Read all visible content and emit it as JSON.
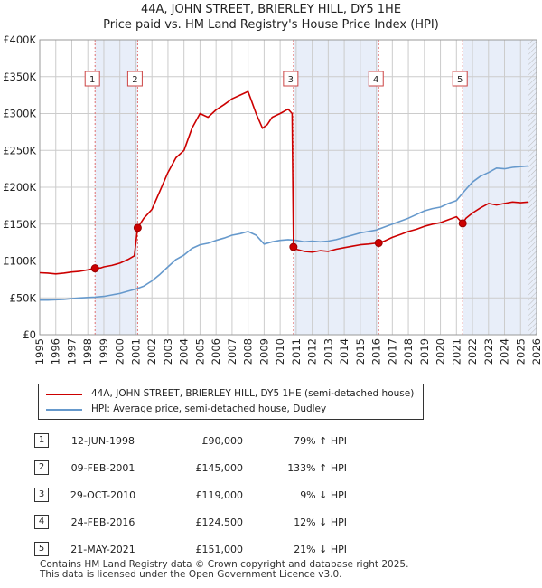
{
  "title_line1": "44A, JOHN STREET, BRIERLEY HILL, DY5 1HE",
  "title_line2": "Price paid vs. HM Land Registry's House Price Index (HPI)",
  "colors": {
    "red": "#cc0000",
    "blue": "#6699cc",
    "shade": "#e8eef9",
    "vline": "#e07070",
    "grid": "#cccccc"
  },
  "chart_data": {
    "type": "line",
    "title": "Price paid vs. HM Land Registry's House Price Index (HPI)",
    "xlim": [
      1995,
      2026
    ],
    "ylim": [
      0,
      400000
    ],
    "y_ticks": [
      0,
      50000,
      100000,
      150000,
      200000,
      250000,
      300000,
      350000,
      400000
    ],
    "y_tick_labels": [
      "£0",
      "£50K",
      "£100K",
      "£150K",
      "£200K",
      "£250K",
      "£300K",
      "£350K",
      "£400K"
    ],
    "x_ticks": [
      1995,
      1996,
      1997,
      1998,
      1999,
      2000,
      2001,
      2002,
      2003,
      2004,
      2005,
      2006,
      2007,
      2008,
      2009,
      2010,
      2011,
      2012,
      2013,
      2014,
      2015,
      2016,
      2017,
      2018,
      2019,
      2020,
      2021,
      2022,
      2023,
      2024,
      2025,
      2026
    ],
    "shaded_ranges": [
      [
        1998.45,
        2001.11
      ],
      [
        2010.83,
        2016.15
      ],
      [
        2021.39,
        2026
      ]
    ],
    "hatched_from": 2025.5,
    "series": [
      {
        "name": "44A, JOHN STREET, BRIERLEY HILL, DY5 1HE (semi-detached house)",
        "color": "#cc0000",
        "x": [
          1995,
          1995.5,
          1996,
          1996.5,
          1997,
          1997.5,
          1998,
          1998.45,
          1998.8,
          1999,
          1999.5,
          2000,
          2000.5,
          2000.9,
          2001.11,
          2001.5,
          2002,
          2002.5,
          2003,
          2003.5,
          2004,
          2004.5,
          2005,
          2005.5,
          2006,
          2006.5,
          2007,
          2007.5,
          2008,
          2008.2,
          2008.5,
          2008.9,
          2009.2,
          2009.5,
          2010,
          2010.5,
          2010.75,
          2010.83,
          2011,
          2011.5,
          2012,
          2012.5,
          2013,
          2013.5,
          2014,
          2014.5,
          2015,
          2015.5,
          2016.15,
          2016.5,
          2017,
          2017.5,
          2018,
          2018.5,
          2019,
          2019.5,
          2020,
          2020.5,
          2021,
          2021.39,
          2021.6,
          2022,
          2022.5,
          2023,
          2023.5,
          2024,
          2024.5,
          2025,
          2025.5
        ],
        "values": [
          84000,
          83500,
          82500,
          83500,
          85000,
          86000,
          88000,
          90000,
          90500,
          92000,
          94000,
          97000,
          102000,
          107000,
          145000,
          158000,
          170000,
          195000,
          220000,
          240000,
          250000,
          280000,
          300000,
          295000,
          305000,
          312000,
          320000,
          325000,
          330000,
          318000,
          300000,
          280000,
          285000,
          295000,
          300000,
          306000,
          300000,
          119000,
          116000,
          113000,
          112000,
          114000,
          113000,
          116000,
          118000,
          120000,
          122000,
          123000,
          124500,
          127000,
          132000,
          136000,
          140000,
          143000,
          147000,
          150000,
          152000,
          156000,
          160000,
          151000,
          158000,
          165000,
          172000,
          178000,
          176000,
          178000,
          180000,
          179000,
          180000
        ]
      },
      {
        "name": "HPI: Average price, semi-detached house, Dudley",
        "color": "#6699cc",
        "x": [
          1995,
          1995.5,
          1996,
          1996.5,
          1997,
          1997.5,
          1998,
          1998.45,
          1999,
          1999.5,
          2000,
          2000.5,
          2001,
          2001.5,
          2002,
          2002.5,
          2003,
          2003.5,
          2004,
          2004.5,
          2005,
          2005.5,
          2006,
          2006.5,
          2007,
          2007.5,
          2008,
          2008.5,
          2009,
          2009.5,
          2010,
          2010.5,
          2011,
          2011.5,
          2012,
          2012.5,
          2013,
          2013.5,
          2014,
          2014.5,
          2015,
          2015.5,
          2016,
          2016.5,
          2017,
          2017.5,
          2018,
          2018.5,
          2019,
          2019.5,
          2020,
          2020.5,
          2021,
          2021.5,
          2022,
          2022.5,
          2023,
          2023.5,
          2024,
          2024.5,
          2025,
          2025.5
        ],
        "values": [
          47000,
          47000,
          47500,
          48000,
          49000,
          50000,
          50500,
          51000,
          52000,
          54000,
          56000,
          59000,
          62000,
          66000,
          73000,
          82000,
          92000,
          102000,
          108000,
          117000,
          122000,
          124000,
          128000,
          131000,
          135000,
          137000,
          140000,
          135000,
          123000,
          126000,
          128000,
          129000,
          128000,
          126000,
          127000,
          126000,
          127000,
          129000,
          132000,
          135000,
          138000,
          140000,
          142000,
          146000,
          150000,
          154000,
          158000,
          163000,
          168000,
          171000,
          173000,
          178000,
          182000,
          195000,
          207000,
          215000,
          220000,
          226000,
          225000,
          227000,
          228000,
          229000
        ]
      }
    ],
    "sale_points": [
      {
        "x": 1998.45,
        "value": 90000
      },
      {
        "x": 2001.11,
        "value": 145000
      },
      {
        "x": 2010.83,
        "value": 119000
      },
      {
        "x": 2016.15,
        "value": 124500
      },
      {
        "x": 2021.39,
        "value": 151000
      }
    ],
    "markers": [
      {
        "label": "1",
        "x": 1998.45
      },
      {
        "label": "2",
        "x": 2001.11
      },
      {
        "label": "3",
        "x": 2010.83
      },
      {
        "label": "4",
        "x": 2016.15
      },
      {
        "label": "5",
        "x": 2021.39
      }
    ]
  },
  "legend": [
    "44A, JOHN STREET, BRIERLEY HILL, DY5 1HE (semi-detached house)",
    "HPI: Average price, semi-detached house, Dudley"
  ],
  "sales": [
    {
      "num": "1",
      "date": "12-JUN-1998",
      "price": "£90,000",
      "hpi": "79% ↑ HPI"
    },
    {
      "num": "2",
      "date": "09-FEB-2001",
      "price": "£145,000",
      "hpi": "133% ↑ HPI"
    },
    {
      "num": "3",
      "date": "29-OCT-2010",
      "price": "£119,000",
      "hpi": "9% ↓ HPI"
    },
    {
      "num": "4",
      "date": "24-FEB-2016",
      "price": "£124,500",
      "hpi": "12% ↓ HPI"
    },
    {
      "num": "5",
      "date": "21-MAY-2021",
      "price": "£151,000",
      "hpi": "21% ↓ HPI"
    }
  ],
  "footer_line1": "Contains HM Land Registry data © Crown copyright and database right 2025.",
  "footer_line2": "This data is licensed under the Open Government Licence v3.0."
}
